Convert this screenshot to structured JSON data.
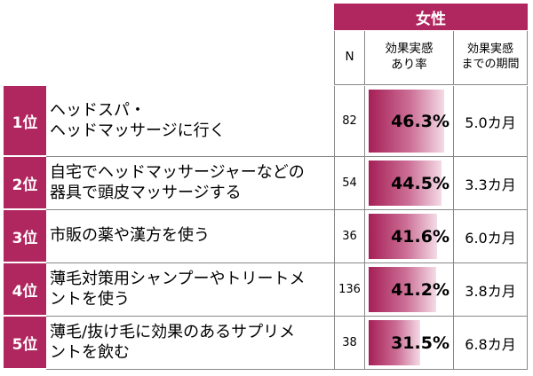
{
  "header": {
    "group": "女性",
    "n_label": "N",
    "rate_label_line1": "効果実感",
    "rate_label_line2": "あり率",
    "period_label_line1": "効果実感",
    "period_label_line2": "までの期間"
  },
  "colors": {
    "accent": "#b0265f",
    "bar_dark": "#a51f56",
    "bar_light": "#f4dbe6"
  },
  "chart_data": {
    "type": "table",
    "columns": [
      "N",
      "効果実感あり率",
      "効果実感までの期間"
    ],
    "rows": [
      {
        "rank": "1位",
        "label_lines": [
          "ヘッドスパ・",
          "ヘッドマッサージに行く"
        ],
        "n": "82",
        "rate": 46.3,
        "rate_text": "46.3%",
        "period": "5.0カ月"
      },
      {
        "rank": "2位",
        "label_lines": [
          "自宅でヘッドマッサージャーなどの",
          "器具で頭皮マッサージする"
        ],
        "n": "54",
        "rate": 44.5,
        "rate_text": "44.5%",
        "period": "3.3カ月"
      },
      {
        "rank": "3位",
        "label_lines": [
          "市販の薬や漢方を使う"
        ],
        "n": "36",
        "rate": 41.6,
        "rate_text": "41.6%",
        "period": "6.0カ月"
      },
      {
        "rank": "4位",
        "label_lines": [
          "薄毛対策用シャンプーやトリートメ",
          "ントを使う"
        ],
        "n": "136",
        "rate": 41.2,
        "rate_text": "41.2%",
        "period": "3.8カ月"
      },
      {
        "rank": "5位",
        "label_lines": [
          "薄毛/抜け毛に効果のあるサプリメ",
          "ントを飲む"
        ],
        "n": "38",
        "rate": 31.5,
        "rate_text": "31.5%",
        "period": "6.8カ月"
      }
    ]
  }
}
